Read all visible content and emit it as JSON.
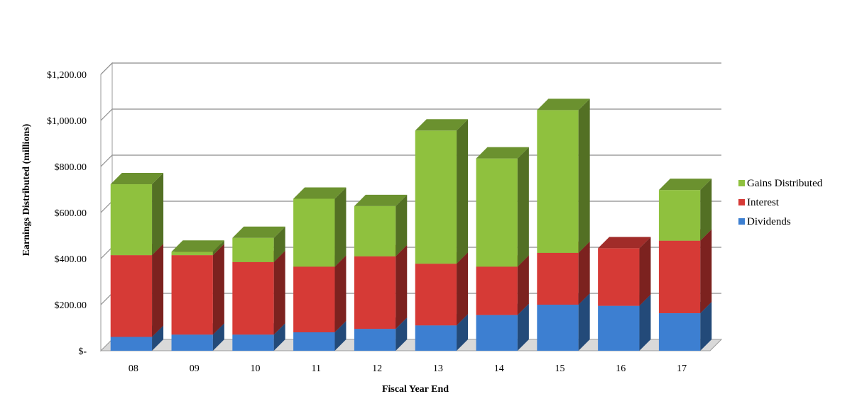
{
  "chart_data": {
    "type": "bar",
    "stacked": true,
    "style": "3d",
    "categories": [
      "08",
      "09",
      "10",
      "11",
      "12",
      "13",
      "14",
      "15",
      "16",
      "17"
    ],
    "series": [
      {
        "name": "Dividends",
        "values": [
          60,
          70,
          70,
          80,
          95,
          110,
          155,
          200,
          195,
          163
        ],
        "color": "#3d7fd1"
      },
      {
        "name": "Interest",
        "values": [
          355,
          345,
          315,
          285,
          315,
          268,
          210,
          225,
          250,
          315
        ],
        "color": "#d63a36"
      },
      {
        "name": "Gains Distributed",
        "values": [
          308,
          15,
          105,
          295,
          218,
          578,
          470,
          620,
          0,
          220
        ],
        "color": "#8fc13e"
      }
    ],
    "xlabel": "Fiscal Year End",
    "ylabel": "Earnings Distributed (millions)",
    "ylim": [
      0,
      1200
    ],
    "yticks": [
      {
        "value": 0,
        "label": "$-"
      },
      {
        "value": 200,
        "label": "$200.00"
      },
      {
        "value": 400,
        "label": "$400.00"
      },
      {
        "value": 600,
        "label": "$600.00"
      },
      {
        "value": 800,
        "label": "$800.00"
      },
      {
        "value": 1000,
        "label": "$1,000.00"
      },
      {
        "value": 1200,
        "label": "$1,200.00"
      }
    ],
    "grid": true,
    "legend": {
      "position": "right",
      "order": [
        "Gains Distributed",
        "Interest",
        "Dividends"
      ]
    }
  }
}
